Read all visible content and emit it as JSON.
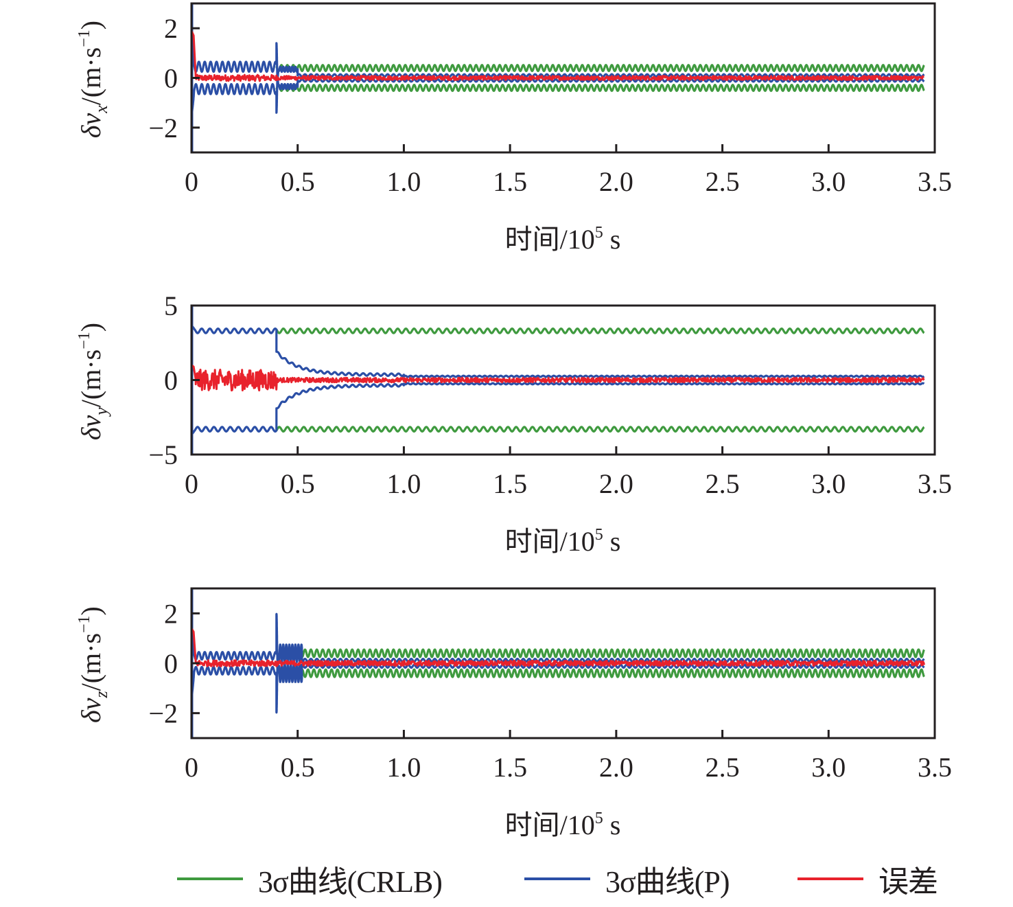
{
  "colors": {
    "crlb": "#3f9a3f",
    "p": "#2b4fa6",
    "error": "#e8222c",
    "axis": "#231f20"
  },
  "legend": [
    {
      "key": "crlb",
      "label": "3σ曲线(CRLB)"
    },
    {
      "key": "p",
      "label": "3σ曲线(P)"
    },
    {
      "key": "error",
      "label": "误差"
    }
  ],
  "chart_data": [
    {
      "type": "line",
      "title": "",
      "ylabel": "δv_x/(m·s⁻¹)",
      "ylabel_main": "δv",
      "ylabel_sub": "x",
      "ylabel_unit": "/(m·s",
      "ylabel_sup": "−1",
      "ylabel_close": ")",
      "xlabel": "时间/10⁵ s",
      "xlabel_main": "时间/10",
      "xlabel_sup": "5",
      "xlabel_unit": " s",
      "xlim": [
        0,
        3.5
      ],
      "ylim": [
        -3,
        3
      ],
      "xticks": [
        0,
        0.5,
        1.0,
        1.5,
        2.0,
        2.5,
        3.0,
        3.5
      ],
      "xtick_labels": [
        "0",
        "0.5",
        "1.0",
        "1.5",
        "2.0",
        "2.5",
        "3.0",
        "3.5"
      ],
      "yticks": [
        -2,
        0,
        2
      ],
      "ytick_labels": [
        "−2",
        "0",
        "2"
      ],
      "grid": false,
      "series": [
        {
          "name": "3σ曲线(CRLB)",
          "key": "crlb",
          "x_start": 0.4,
          "x_end": 3.45,
          "center": 0.4,
          "osc_amp": 0.12,
          "periods_per_unit": 36
        },
        {
          "name": "3σ曲线(P)",
          "key": "p",
          "initial": 1.6,
          "segments": [
            {
              "x_start": 0.0,
              "x_end": 0.4,
              "center": 0.45,
              "osc_amp": 0.2,
              "periods_per_unit": 36
            },
            {
              "x_start": 0.4,
              "x_end": 0.5,
              "center": 0.35,
              "osc_amp": 0.1,
              "spike": 1.4
            },
            {
              "x_start": 0.5,
              "x_end": 3.45,
              "center": 0.1,
              "osc_amp": 0.05,
              "periods_per_unit": 36
            }
          ]
        },
        {
          "name": "误差",
          "key": "error",
          "initial": 1.9,
          "noise_early": 0.12,
          "noise_late": 0.08,
          "x_end": 3.45
        }
      ]
    },
    {
      "type": "line",
      "title": "",
      "ylabel": "δv_y/(m·s⁻¹)",
      "ylabel_main": "δv",
      "ylabel_sub": "y",
      "ylabel_unit": "/(m·s",
      "ylabel_sup": "−1",
      "ylabel_close": ")",
      "xlabel": "时间/10⁵ s",
      "xlabel_main": "时间/10",
      "xlabel_sup": "5",
      "xlabel_unit": " s",
      "xlim": [
        0,
        3.5
      ],
      "ylim": [
        -5,
        5
      ],
      "xticks": [
        0,
        0.5,
        1.0,
        1.5,
        2.0,
        2.5,
        3.0,
        3.5
      ],
      "xtick_labels": [
        "0",
        "0.5",
        "1.0",
        "1.5",
        "2.0",
        "2.5",
        "3.0",
        "3.5"
      ],
      "yticks": [
        -5,
        0,
        5
      ],
      "ytick_labels": [
        "−5",
        "0",
        "5"
      ],
      "grid": false,
      "series": [
        {
          "name": "3σ曲线(CRLB)",
          "key": "crlb",
          "x_start": 0.4,
          "x_end": 3.45,
          "center": 3.3,
          "osc_amp": 0.15,
          "periods_per_unit": 26
        },
        {
          "name": "3σ曲线(P)",
          "key": "p",
          "initial": 3.7,
          "segments": [
            {
              "x_start": 0.0,
              "x_end": 0.4,
              "center": 3.3,
              "osc_amp": 0.15,
              "periods_per_unit": 26
            },
            {
              "x_start": 0.4,
              "x_end": 1.0,
              "center_from": 1.9,
              "center_to": 0.35
            },
            {
              "x_start": 1.0,
              "x_end": 3.45,
              "center": 0.25,
              "osc_amp": 0.04,
              "periods_per_unit": 40
            }
          ]
        },
        {
          "name": "误差",
          "key": "error",
          "initial": 1.0,
          "noise_early": 0.7,
          "noise_late": 0.15,
          "x_end": 3.45
        }
      ]
    },
    {
      "type": "line",
      "title": "",
      "ylabel": "δv_z/(m·s⁻¹)",
      "ylabel_main": "δv",
      "ylabel_sub": "z",
      "ylabel_unit": "/(m·s",
      "ylabel_sup": "−1",
      "ylabel_close": ")",
      "xlabel": "时间/10⁵ s",
      "xlabel_main": "时间/10",
      "xlabel_sup": "5",
      "xlabel_unit": " s",
      "xlim": [
        0,
        3.5
      ],
      "ylim": [
        -3,
        3
      ],
      "xticks": [
        0,
        0.5,
        1.0,
        1.5,
        2.0,
        2.5,
        3.0,
        3.5
      ],
      "xtick_labels": [
        "0",
        "0.5",
        "1.0",
        "1.5",
        "2.0",
        "2.5",
        "3.0",
        "3.5"
      ],
      "yticks": [
        -2,
        0,
        2
      ],
      "ytick_labels": [
        "−2",
        "0",
        "2"
      ],
      "grid": false,
      "series": [
        {
          "name": "3σ曲线(CRLB)",
          "key": "crlb",
          "x_start": 0.4,
          "x_end": 3.45,
          "center": 0.4,
          "osc_amp": 0.15,
          "periods_per_unit": 36
        },
        {
          "name": "3σ曲线(P)",
          "key": "p",
          "initial": 1.5,
          "segments": [
            {
              "x_start": 0.0,
              "x_end": 0.4,
              "center": 0.3,
              "osc_amp": 0.15,
              "periods_per_unit": 36
            },
            {
              "x_start": 0.4,
              "x_end": 0.52,
              "center": 0.4,
              "osc_amp": 0.35,
              "spike": 1.95
            },
            {
              "x_start": 0.52,
              "x_end": 3.45,
              "center": 0.12,
              "osc_amp": 0.06,
              "periods_per_unit": 36
            }
          ]
        },
        {
          "name": "误差",
          "key": "error",
          "initial": 1.4,
          "noise_early": 0.12,
          "noise_late": 0.1,
          "x_end": 3.45
        }
      ]
    }
  ]
}
